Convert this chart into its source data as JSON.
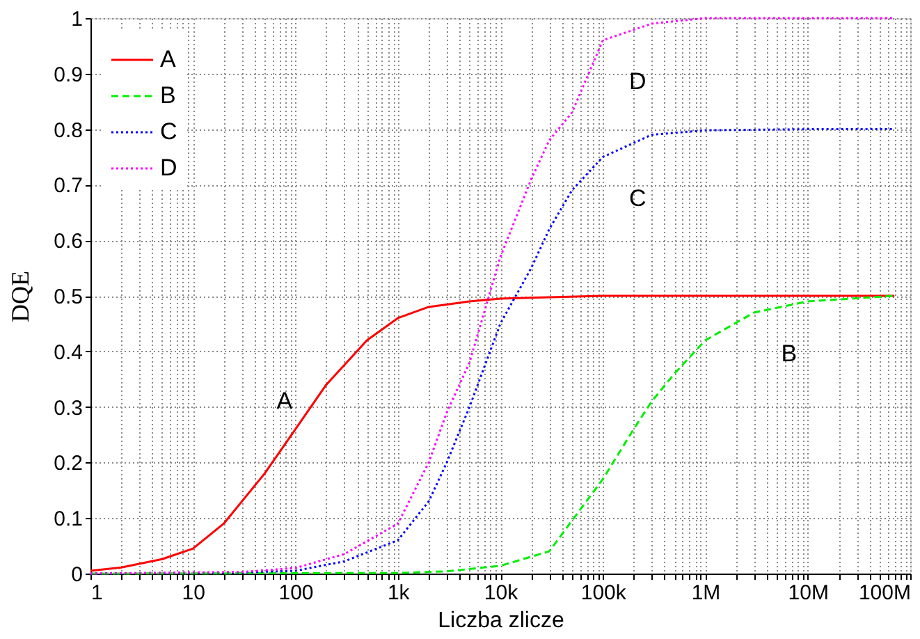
{
  "chart_data": {
    "type": "line",
    "xlabel": "Liczba zlicze",
    "ylabel": "DQE",
    "log": "x",
    "xlim": [
      1,
      100000000
    ],
    "ylim": [
      0,
      1
    ],
    "xticks": [
      {
        "value": 1,
        "label": "1"
      },
      {
        "value": 2,
        "label": null
      },
      {
        "value": 3,
        "label": null
      },
      {
        "value": 4,
        "label": null
      },
      {
        "value": 5,
        "label": null
      },
      {
        "value": 6,
        "label": null
      },
      {
        "value": 7,
        "label": null
      },
      {
        "value": 8,
        "label": null
      },
      {
        "value": 9,
        "label": null
      },
      {
        "value": 10,
        "label": "10"
      },
      {
        "value": 20,
        "label": null
      },
      {
        "value": 30,
        "label": null
      },
      {
        "value": 40,
        "label": null
      },
      {
        "value": 50,
        "label": null
      },
      {
        "value": 60,
        "label": null
      },
      {
        "value": 70,
        "label": null
      },
      {
        "value": 80,
        "label": null
      },
      {
        "value": 90,
        "label": null
      },
      {
        "value": 100,
        "label": "100"
      },
      {
        "value": 200,
        "label": null
      },
      {
        "value": 300,
        "label": null
      },
      {
        "value": 400,
        "label": null
      },
      {
        "value": 500,
        "label": null
      },
      {
        "value": 600,
        "label": null
      },
      {
        "value": 700,
        "label": null
      },
      {
        "value": 800,
        "label": null
      },
      {
        "value": 900,
        "label": null
      },
      {
        "value": 1000,
        "label": "1k"
      },
      {
        "value": 2000,
        "label": null
      },
      {
        "value": 3000,
        "label": null
      },
      {
        "value": 4000,
        "label": null
      },
      {
        "value": 5000,
        "label": null
      },
      {
        "value": 6000,
        "label": null
      },
      {
        "value": 7000,
        "label": null
      },
      {
        "value": 8000,
        "label": null
      },
      {
        "value": 9000,
        "label": null
      },
      {
        "value": 10000,
        "label": "10k"
      },
      {
        "value": 20000,
        "label": null
      },
      {
        "value": 30000,
        "label": null
      },
      {
        "value": 40000,
        "label": null
      },
      {
        "value": 50000,
        "label": null
      },
      {
        "value": 60000,
        "label": null
      },
      {
        "value": 70000,
        "label": null
      },
      {
        "value": 80000,
        "label": null
      },
      {
        "value": 90000,
        "label": null
      },
      {
        "value": 100000,
        "label": "100k"
      },
      {
        "value": 200000,
        "label": null
      },
      {
        "value": 300000,
        "label": null
      },
      {
        "value": 400000,
        "label": null
      },
      {
        "value": 500000,
        "label": null
      },
      {
        "value": 600000,
        "label": null
      },
      {
        "value": 700000,
        "label": null
      },
      {
        "value": 800000,
        "label": null
      },
      {
        "value": 900000,
        "label": null
      },
      {
        "value": 1000000,
        "label": "1M"
      },
      {
        "value": 2000000,
        "label": null
      },
      {
        "value": 3000000,
        "label": null
      },
      {
        "value": 4000000,
        "label": null
      },
      {
        "value": 5000000,
        "label": null
      },
      {
        "value": 6000000,
        "label": null
      },
      {
        "value": 7000000,
        "label": null
      },
      {
        "value": 8000000,
        "label": null
      },
      {
        "value": 9000000,
        "label": null
      },
      {
        "value": 10000000,
        "label": "10M"
      },
      {
        "value": 20000000,
        "label": null
      },
      {
        "value": 30000000,
        "label": null
      },
      {
        "value": 40000000,
        "label": null
      },
      {
        "value": 50000000,
        "label": null
      },
      {
        "value": 60000000,
        "label": null
      },
      {
        "value": 70000000,
        "label": null
      },
      {
        "value": 80000000,
        "label": null
      },
      {
        "value": 90000000,
        "label": null
      },
      {
        "value": 100000000,
        "label": "100M"
      }
    ],
    "yticks": [
      0,
      0.1,
      0.2,
      0.3,
      0.4,
      0.5,
      0.6,
      0.7,
      0.8,
      0.9,
      1
    ],
    "grid": true,
    "legend": "top left",
    "marker": "none",
    "series": [
      {
        "name": "A",
        "color": "#ff0000",
        "line_style": "solid",
        "x": [
          1,
          2,
          5,
          10,
          20,
          50,
          100,
          200,
          500,
          1000,
          2000,
          5000,
          10000,
          100000,
          70000000
        ],
        "values": [
          0.005,
          0.011,
          0.026,
          0.045,
          0.09,
          0.18,
          0.26,
          0.34,
          0.42,
          0.46,
          0.48,
          0.49,
          0.495,
          0.5,
          0.5
        ]
      },
      {
        "name": "B",
        "color": "#00ee00",
        "line_style": "dashed",
        "x": [
          1,
          1000,
          3000,
          10000,
          30000,
          100000,
          200000,
          300000,
          500000,
          1000000,
          3000000,
          10000000,
          70000000
        ],
        "values": [
          0,
          0.001,
          0.004,
          0.014,
          0.04,
          0.17,
          0.26,
          0.31,
          0.36,
          0.42,
          0.47,
          0.49,
          0.5
        ]
      },
      {
        "name": "C",
        "color": "#0000ff",
        "line_style": "dotted",
        "x": [
          1,
          30,
          100,
          300,
          1000,
          2000,
          3000,
          5000,
          10000,
          20000,
          30000,
          50000,
          100000,
          300000,
          1000000,
          10000000,
          70000000
        ],
        "values": [
          0,
          0.002,
          0.005,
          0.022,
          0.06,
          0.13,
          0.2,
          0.3,
          0.45,
          0.55,
          0.62,
          0.69,
          0.75,
          0.79,
          0.798,
          0.8,
          0.8
        ]
      },
      {
        "name": "D",
        "color": "#ff00ff",
        "line_style": "dotted",
        "x": [
          1,
          30,
          100,
          300,
          1000,
          2000,
          3000,
          5000,
          10000,
          20000,
          30000,
          50000,
          100000,
          300000,
          1000000,
          70000000
        ],
        "values": [
          0,
          0.003,
          0.01,
          0.035,
          0.09,
          0.2,
          0.29,
          0.38,
          0.57,
          0.71,
          0.78,
          0.83,
          0.96,
          0.99,
          1,
          1
        ]
      }
    ],
    "annotations": [
      "A",
      "B",
      "C",
      "D"
    ]
  }
}
